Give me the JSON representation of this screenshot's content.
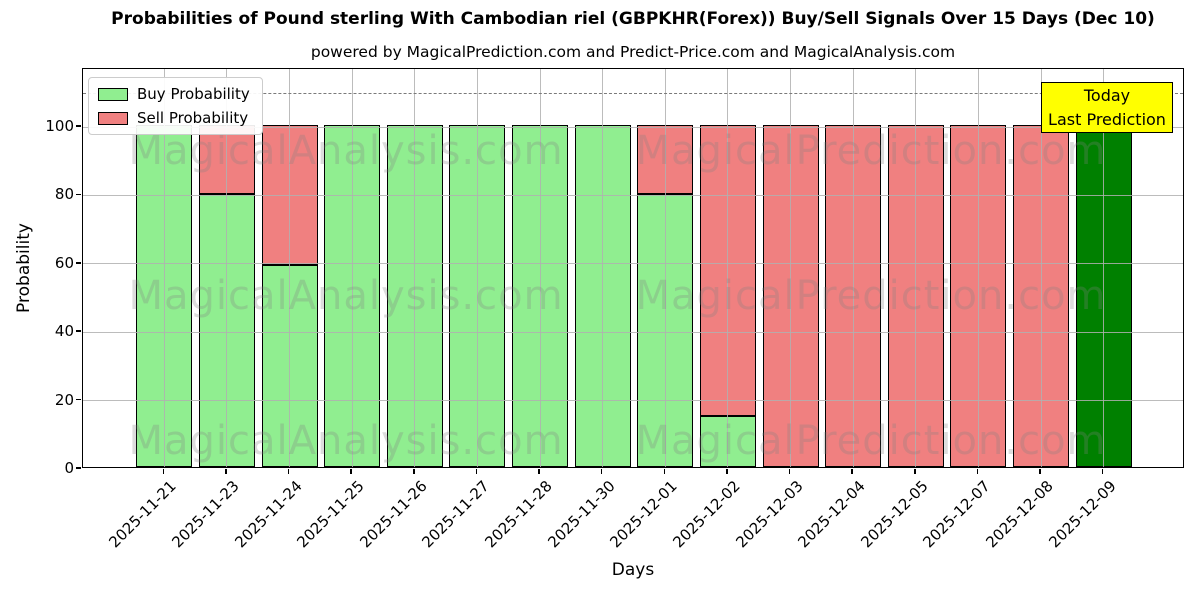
{
  "title": "Probabilities of Pound sterling With Cambodian riel (GBPKHR(Forex)) Buy/Sell Signals Over 15 Days (Dec 10)",
  "subtitle": "powered by MagicalPrediction.com and Predict-Price.com and MagicalAnalysis.com",
  "legend": {
    "buy_label": "Buy Probability",
    "sell_label": "Sell Probability"
  },
  "annotation": {
    "line1": "Today",
    "line2": "Last Prediction"
  },
  "watermarks": {
    "left_text": "MagicalAnalysis.com",
    "right_text": "MagicalPrediction.com"
  },
  "colors": {
    "buy": "#90EE90",
    "sell": "#F08080",
    "last_prediction": "#008000",
    "bar_edge": "#000000",
    "annotation_bg": "#FFFF00",
    "annotation_border": "#000000",
    "grid": "#B0B0B0",
    "dashed_line": "#7A7A7A",
    "watermark": "#808080"
  },
  "chart_data": {
    "type": "bar",
    "stacked": true,
    "title": "Probabilities of Pound sterling With Cambodian riel (GBPKHR(Forex)) Buy/Sell Signals Over 15 Days (Dec 10)",
    "xlabel": "Days",
    "ylabel": "Probability",
    "ylim": [
      0,
      117
    ],
    "yticks": [
      0,
      20,
      40,
      60,
      80,
      100
    ],
    "dashed_guide_y": 110,
    "grid": true,
    "legend_position": "upper left",
    "categories": [
      "2025-11-21",
      "2025-11-23",
      "2025-11-24",
      "2025-11-25",
      "2025-11-26",
      "2025-11-27",
      "2025-11-28",
      "2025-11-30",
      "2025-12-01",
      "2025-12-02",
      "2025-12-03",
      "2025-12-04",
      "2025-12-05",
      "2025-12-07",
      "2025-12-08",
      "2025-12-09"
    ],
    "series": [
      {
        "name": "Buy Probability",
        "color": "#90EE90",
        "values": [
          100,
          80,
          59,
          100,
          100,
          100,
          100,
          100,
          80,
          15,
          0,
          0,
          0,
          0,
          0,
          100
        ]
      },
      {
        "name": "Sell Probability",
        "color": "#F08080",
        "values": [
          0,
          20,
          41,
          0,
          0,
          0,
          0,
          0,
          20,
          85,
          100,
          100,
          100,
          100,
          100,
          0
        ]
      }
    ],
    "special_bars": [
      {
        "index": 15,
        "color": "#008000",
        "note": "Today / Last Prediction"
      }
    ]
  }
}
